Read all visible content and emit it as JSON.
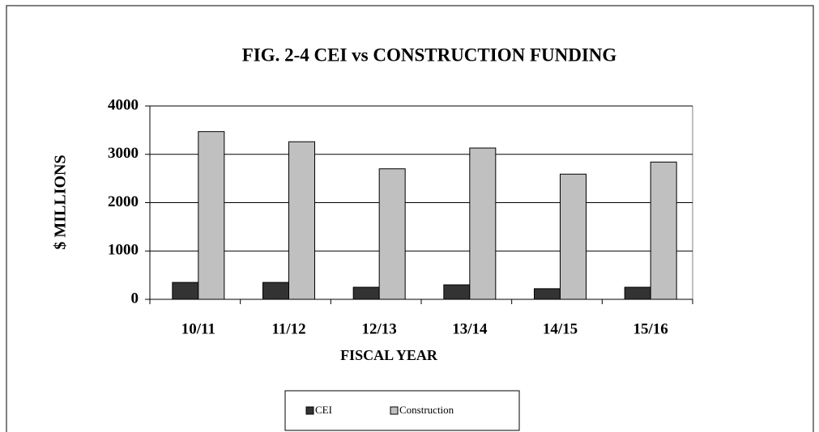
{
  "chart_data": {
    "type": "bar",
    "title": "FIG. 2-4  CEI vs CONSTRUCTION FUNDING",
    "xlabel": "FISCAL YEAR",
    "ylabel": "$ MILLIONS",
    "categories": [
      "10/11",
      "11/12",
      "12/13",
      "13/14",
      "14/15",
      "15/16"
    ],
    "series": [
      {
        "name": "CEI",
        "color": "#333333",
        "values": [
          350,
          350,
          250,
          300,
          220,
          250
        ]
      },
      {
        "name": "Construction",
        "color": "#c0c0c0",
        "values": [
          3470,
          3260,
          2700,
          3130,
          2590,
          2840
        ]
      }
    ],
    "ylim": [
      0,
      4000
    ],
    "yticks": [
      0,
      1000,
      2000,
      3000,
      4000
    ],
    "grid": true,
    "legend": "bottom"
  }
}
